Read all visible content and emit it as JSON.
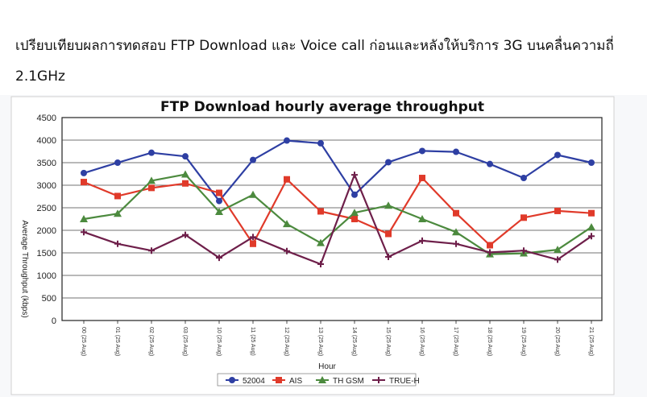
{
  "heading": "เปรียบเทียบผลการทดสอบ FTP Download และ Voice call ก่อนและหลังให้บริการ 3G บนคลื่นความถี่ 2.1GHz",
  "chart_data": {
    "type": "line",
    "title": "FTP Download hourly average throughput",
    "xlabel": "Hour",
    "ylabel": "Average Throughput (kbps)",
    "ylim": [
      0,
      4500
    ],
    "yticks": [
      "0",
      "500",
      "1000",
      "1500",
      "2000",
      "2500",
      "3000",
      "3500",
      "4000",
      "4500"
    ],
    "grid": true,
    "legend_position": "bottom",
    "categories": [
      "00 (25 Aug)",
      "01 (25 Aug)",
      "02 (25 Aug)",
      "03 (25 Aug)",
      "10 (25 Aug)",
      "11 (25 Aug)",
      "12 (25 Aug)",
      "13 (25 Aug)",
      "14 (25 Aug)",
      "15 (25 Aug)",
      "16 (25 Aug)",
      "17 (25 Aug)",
      "18 (25 Aug)",
      "19 (25 Aug)",
      "20 (25 Aug)",
      "21 (25 Aug)"
    ],
    "series": [
      {
        "name": "52004",
        "color": "#2e3fa3",
        "marker": "circle",
        "values": [
          3270,
          3500,
          3720,
          3640,
          2650,
          3560,
          3990,
          3930,
          2790,
          3510,
          3760,
          3740,
          3470,
          3160,
          3670,
          3500
        ]
      },
      {
        "name": "AIS",
        "color": "#e03a2a",
        "marker": "square",
        "values": [
          3070,
          2760,
          2940,
          3040,
          2830,
          1700,
          3130,
          2420,
          2250,
          1920,
          3160,
          2380,
          1670,
          2280,
          2430,
          2380
        ]
      },
      {
        "name": "TH GSM",
        "color": "#4c8a3e",
        "marker": "triangle",
        "values": [
          2250,
          2370,
          3100,
          3240,
          2410,
          2790,
          2140,
          1720,
          2390,
          2550,
          2250,
          1960,
          1470,
          1490,
          1570,
          2070
        ]
      },
      {
        "name": "TRUE-H",
        "color": "#6e1f4a",
        "marker": "cross",
        "values": [
          1960,
          1700,
          1550,
          1900,
          1390,
          1850,
          1540,
          1250,
          3230,
          1410,
          1770,
          1700,
          1510,
          1550,
          1350,
          1870
        ]
      }
    ]
  }
}
